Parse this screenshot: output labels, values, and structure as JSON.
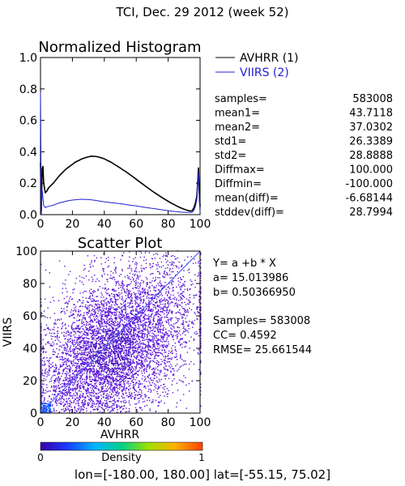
{
  "page_title": "TCI,  Dec. 29 2012 (week 52)",
  "footer": "lon=[-180.00, 180.00] lat=[-55.15, 75.02]",
  "histogram": {
    "title": "Normalized Histogram",
    "legend": [
      {
        "label": "AVHRR (1)",
        "color": "#000000"
      },
      {
        "label": "VIIRS (2)",
        "color": "#2020d0"
      }
    ],
    "stats": [
      {
        "label": "samples=",
        "value": "583008"
      },
      {
        "label": "mean1=",
        "value": "43.7118"
      },
      {
        "label": "mean2=",
        "value": "37.0302"
      },
      {
        "label": "std1=",
        "value": "26.3389"
      },
      {
        "label": "std2=",
        "value": "28.8888"
      },
      {
        "label": "Diffmax=",
        "value": "100.000"
      },
      {
        "label": "Diffmin=",
        "value": "-100.000"
      },
      {
        "label": "mean(diff)=",
        "value": "-6.68144"
      },
      {
        "label": "stddev(diff)=",
        "value": "28.7994"
      }
    ],
    "xticks": [
      "0",
      "20",
      "40",
      "60",
      "80",
      "100"
    ],
    "yticks": [
      "0.0",
      "0.2",
      "0.4",
      "0.6",
      "0.8",
      "1.0"
    ]
  },
  "scatter": {
    "title": "Scatter Plot",
    "xlabel": "AVHRR",
    "ylabel": "VIIRS",
    "xticks": [
      "0",
      "20",
      "40",
      "60",
      "80",
      "100"
    ],
    "yticks": [
      "0",
      "20",
      "40",
      "60",
      "80",
      "100"
    ],
    "fit_lines": [
      "Y= a +b * X",
      "a= 15.013986",
      "b= 0.50366950"
    ],
    "metric_lines": [
      "Samples= 583008",
      "CC=  0.4592",
      "RMSE= 25.661544"
    ]
  },
  "colorbar": {
    "label": "Density",
    "min_label": "0",
    "max_label": "1",
    "colors": [
      "#3a00a8",
      "#1a3cff",
      "#00b4ff",
      "#00d08a",
      "#a0e000",
      "#ffb000",
      "#ff4000"
    ]
  },
  "chart_data": [
    {
      "type": "line",
      "title": "Normalized Histogram",
      "xlabel": "",
      "ylabel": "",
      "xlim": [
        0,
        100
      ],
      "ylim": [
        0,
        1
      ],
      "grid": false,
      "legend_position": "right",
      "series": [
        {
          "name": "AVHRR (1)",
          "color": "#000000",
          "x": [
            0,
            0.5,
            1,
            1.5,
            2,
            3,
            4,
            5,
            6,
            8,
            10,
            12,
            14,
            16,
            18,
            20,
            22,
            24,
            26,
            28,
            30,
            32,
            34,
            36,
            38,
            40,
            42,
            44,
            46,
            48,
            50,
            52,
            54,
            56,
            58,
            60,
            62,
            64,
            66,
            68,
            70,
            72,
            74,
            76,
            78,
            80,
            82,
            84,
            86,
            88,
            90,
            92,
            94,
            95,
            96,
            97,
            98,
            98.5,
            99,
            99.5,
            100
          ],
          "y": [
            0.33,
            0.02,
            0.29,
            0.31,
            0.2,
            0.14,
            0.15,
            0.17,
            0.18,
            0.2,
            0.225,
            0.25,
            0.27,
            0.29,
            0.305,
            0.32,
            0.335,
            0.345,
            0.355,
            0.362,
            0.368,
            0.372,
            0.371,
            0.368,
            0.362,
            0.355,
            0.345,
            0.335,
            0.322,
            0.31,
            0.297,
            0.283,
            0.27,
            0.255,
            0.24,
            0.225,
            0.21,
            0.195,
            0.18,
            0.165,
            0.15,
            0.137,
            0.123,
            0.11,
            0.097,
            0.085,
            0.073,
            0.063,
            0.052,
            0.043,
            0.035,
            0.028,
            0.022,
            0.025,
            0.04,
            0.07,
            0.12,
            0.2,
            0.3,
            0.15,
            0.05
          ]
        },
        {
          "name": "VIIRS (2)",
          "color": "#2020d0",
          "x": [
            0,
            0.5,
            1,
            2,
            3,
            4,
            6,
            8,
            10,
            12,
            14,
            16,
            18,
            20,
            22,
            24,
            26,
            28,
            30,
            32,
            34,
            36,
            38,
            40,
            44,
            48,
            52,
            56,
            60,
            64,
            68,
            72,
            76,
            80,
            84,
            88,
            92,
            95,
            96,
            97,
            98,
            98.5,
            99,
            99.5,
            100
          ],
          "y": [
            0.78,
            0.0,
            0.16,
            0.06,
            0.045,
            0.05,
            0.055,
            0.06,
            0.068,
            0.075,
            0.08,
            0.085,
            0.09,
            0.093,
            0.095,
            0.097,
            0.098,
            0.097,
            0.096,
            0.094,
            0.091,
            0.088,
            0.085,
            0.082,
            0.077,
            0.072,
            0.067,
            0.061,
            0.055,
            0.049,
            0.043,
            0.037,
            0.031,
            0.025,
            0.02,
            0.016,
            0.014,
            0.015,
            0.025,
            0.05,
            0.1,
            0.22,
            0.27,
            0.1,
            0.02
          ]
        }
      ]
    },
    {
      "type": "heatmap",
      "title": "Scatter Plot",
      "xlabel": "AVHRR",
      "ylabel": "VIIRS",
      "xlim": [
        0,
        100
      ],
      "ylim": [
        0,
        100
      ],
      "grid": false,
      "fit": {
        "a": 15.013986,
        "b": 0.5036695
      },
      "samples": 583008,
      "cc": 0.4592,
      "rmse": 25.661544
    }
  ]
}
